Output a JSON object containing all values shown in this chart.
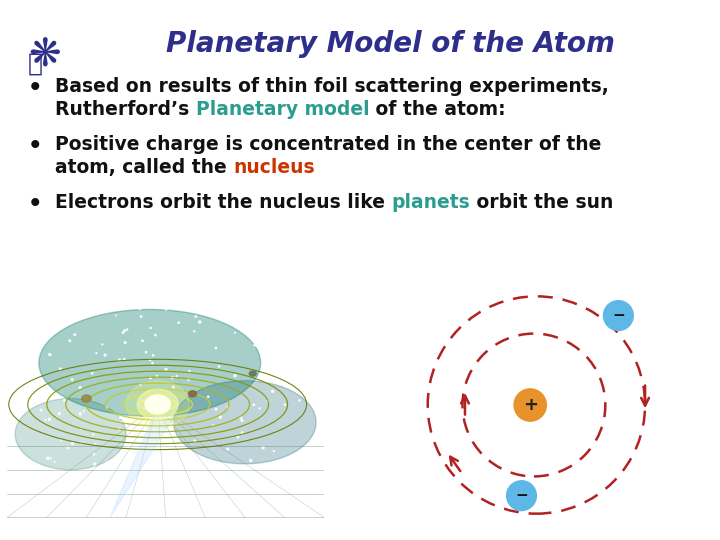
{
  "title": "Planetary Model of the Atom",
  "title_color": "#2e2e8b",
  "title_fontsize": 20,
  "bg_color": "#ffffff",
  "bullet1_line1": "Based on results of thin foil scattering experiments,",
  "bullet1_line2_pre": "Rutherford’s ",
  "bullet1_line2_highlight": "Planetary model",
  "bullet1_line2_post": " of the atom:",
  "bullet1_highlight_color": "#2a9d8f",
  "bullet2_line1": "Positive charge is concentrated in the center of the",
  "bullet2_line2_pre": "atom, called the ",
  "bullet2_line2_highlight": "nucleus",
  "bullet2_highlight_color": "#cc3300",
  "bullet3_pre": "Electrons orbit the nucleus like ",
  "bullet3_highlight": "planets",
  "bullet3_post": " orbit the sun",
  "bullet3_highlight_color": "#2a9d8f",
  "text_color": "#111111",
  "text_fontsize": 13.5,
  "nucleus_color": "#e8922a",
  "electron_color": "#5db8e8",
  "orbit_color": "#b22222"
}
